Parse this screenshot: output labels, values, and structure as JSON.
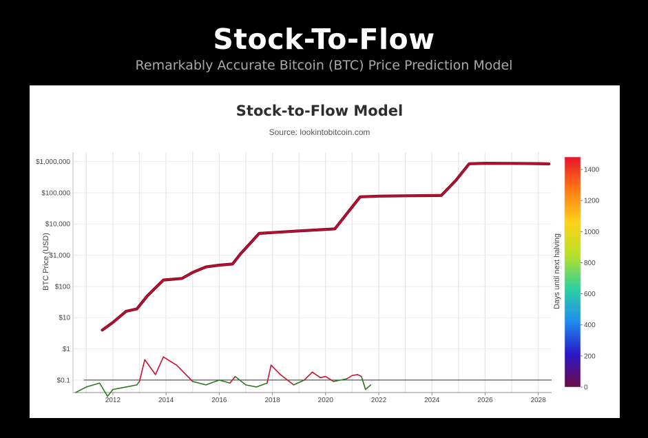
{
  "headline": "Stock-To-Flow",
  "subheadline": "Remarkably Accurate Bitcoin (BTC) Price Prediction Model",
  "chart_data": {
    "type": "line",
    "title": "Stock-to-Flow Model",
    "subtitle": "Source: lookintobitcoin.com",
    "xlabel": "",
    "ylabel": "BTC Price (USD)",
    "y_scale": "log",
    "grid": true,
    "xlim": [
      2010.5,
      2028.5
    ],
    "ylim_log10": [
      -1.4,
      6.3
    ],
    "x_ticks": [
      2012,
      2014,
      2016,
      2018,
      2020,
      2022,
      2024,
      2026,
      2028
    ],
    "x_tick_labels": [
      "2012",
      "2014",
      "2016",
      "2018",
      "2020",
      "2022",
      "2024",
      "2026",
      "2028"
    ],
    "y_ticks": [
      0.1,
      1,
      10,
      100,
      1000,
      10000,
      100000,
      1000000
    ],
    "y_tick_labels": [
      "$0.1",
      "$1",
      "$10",
      "$100",
      "$1,000",
      "$10,000",
      "$100,000",
      "$1,000,000"
    ],
    "reference_line": {
      "y": 0.1
    },
    "colorbar": {
      "label": "Days until next halving",
      "range": [
        0,
        1480
      ],
      "ticks": [
        0,
        200,
        400,
        600,
        800,
        1000,
        1200,
        1400
      ],
      "colors": [
        "#6d0a45",
        "#2a16c9",
        "#1f8ef0",
        "#2fd0a0",
        "#b7e02a",
        "#ffd21a",
        "#ff7a14",
        "#e8142a"
      ]
    },
    "series": [
      {
        "color": "#b8102e",
        "x": [
          2011.6,
          2012.0,
          2012.5,
          2012.9,
          2013.3,
          2013.9,
          2014.6,
          2015.0,
          2015.5,
          2016.0,
          2016.5,
          2016.8,
          2017.2,
          2017.5,
          2018.0,
          2019.0,
          2020.0,
          2020.35,
          2021.3,
          2022.0,
          2023.0,
          2024.35,
          2024.9,
          2025.4,
          2026.0,
          2027.0,
          2028.0,
          2028.4
        ],
        "y": [
          4,
          7,
          16,
          19,
          50,
          160,
          180,
          280,
          420,
          480,
          520,
          1100,
          2600,
          5000,
          5300,
          6000,
          6700,
          7000,
          74000,
          78000,
          80000,
          82000,
          250000,
          850000,
          880000,
          870000,
          860000,
          840000
        ]
      },
      {
        "color": "#2d7a1e",
        "x": [
          2010.6,
          2011.0,
          2011.5,
          2011.8,
          2012.0,
          2012.5,
          2012.9,
          2013.0,
          2013.2,
          2013.6,
          2013.9,
          2014.4,
          2015.0,
          2015.5,
          2016.0,
          2016.4,
          2016.6,
          2017.0,
          2017.4,
          2017.8,
          2017.95,
          2018.3,
          2018.8,
          2019.2,
          2019.5,
          2019.8,
          2020.0,
          2020.3,
          2020.8,
          2021.0,
          2021.2,
          2021.35,
          2021.5,
          2021.7
        ],
        "y": [
          0.04,
          0.06,
          0.08,
          0.03,
          0.05,
          0.06,
          0.07,
          0.09,
          0.45,
          0.15,
          0.55,
          0.3,
          0.09,
          0.07,
          0.1,
          0.08,
          0.13,
          0.07,
          0.06,
          0.08,
          0.3,
          0.15,
          0.07,
          0.1,
          0.18,
          0.12,
          0.13,
          0.09,
          0.11,
          0.14,
          0.15,
          0.13,
          0.05,
          0.07
        ]
      }
    ]
  }
}
